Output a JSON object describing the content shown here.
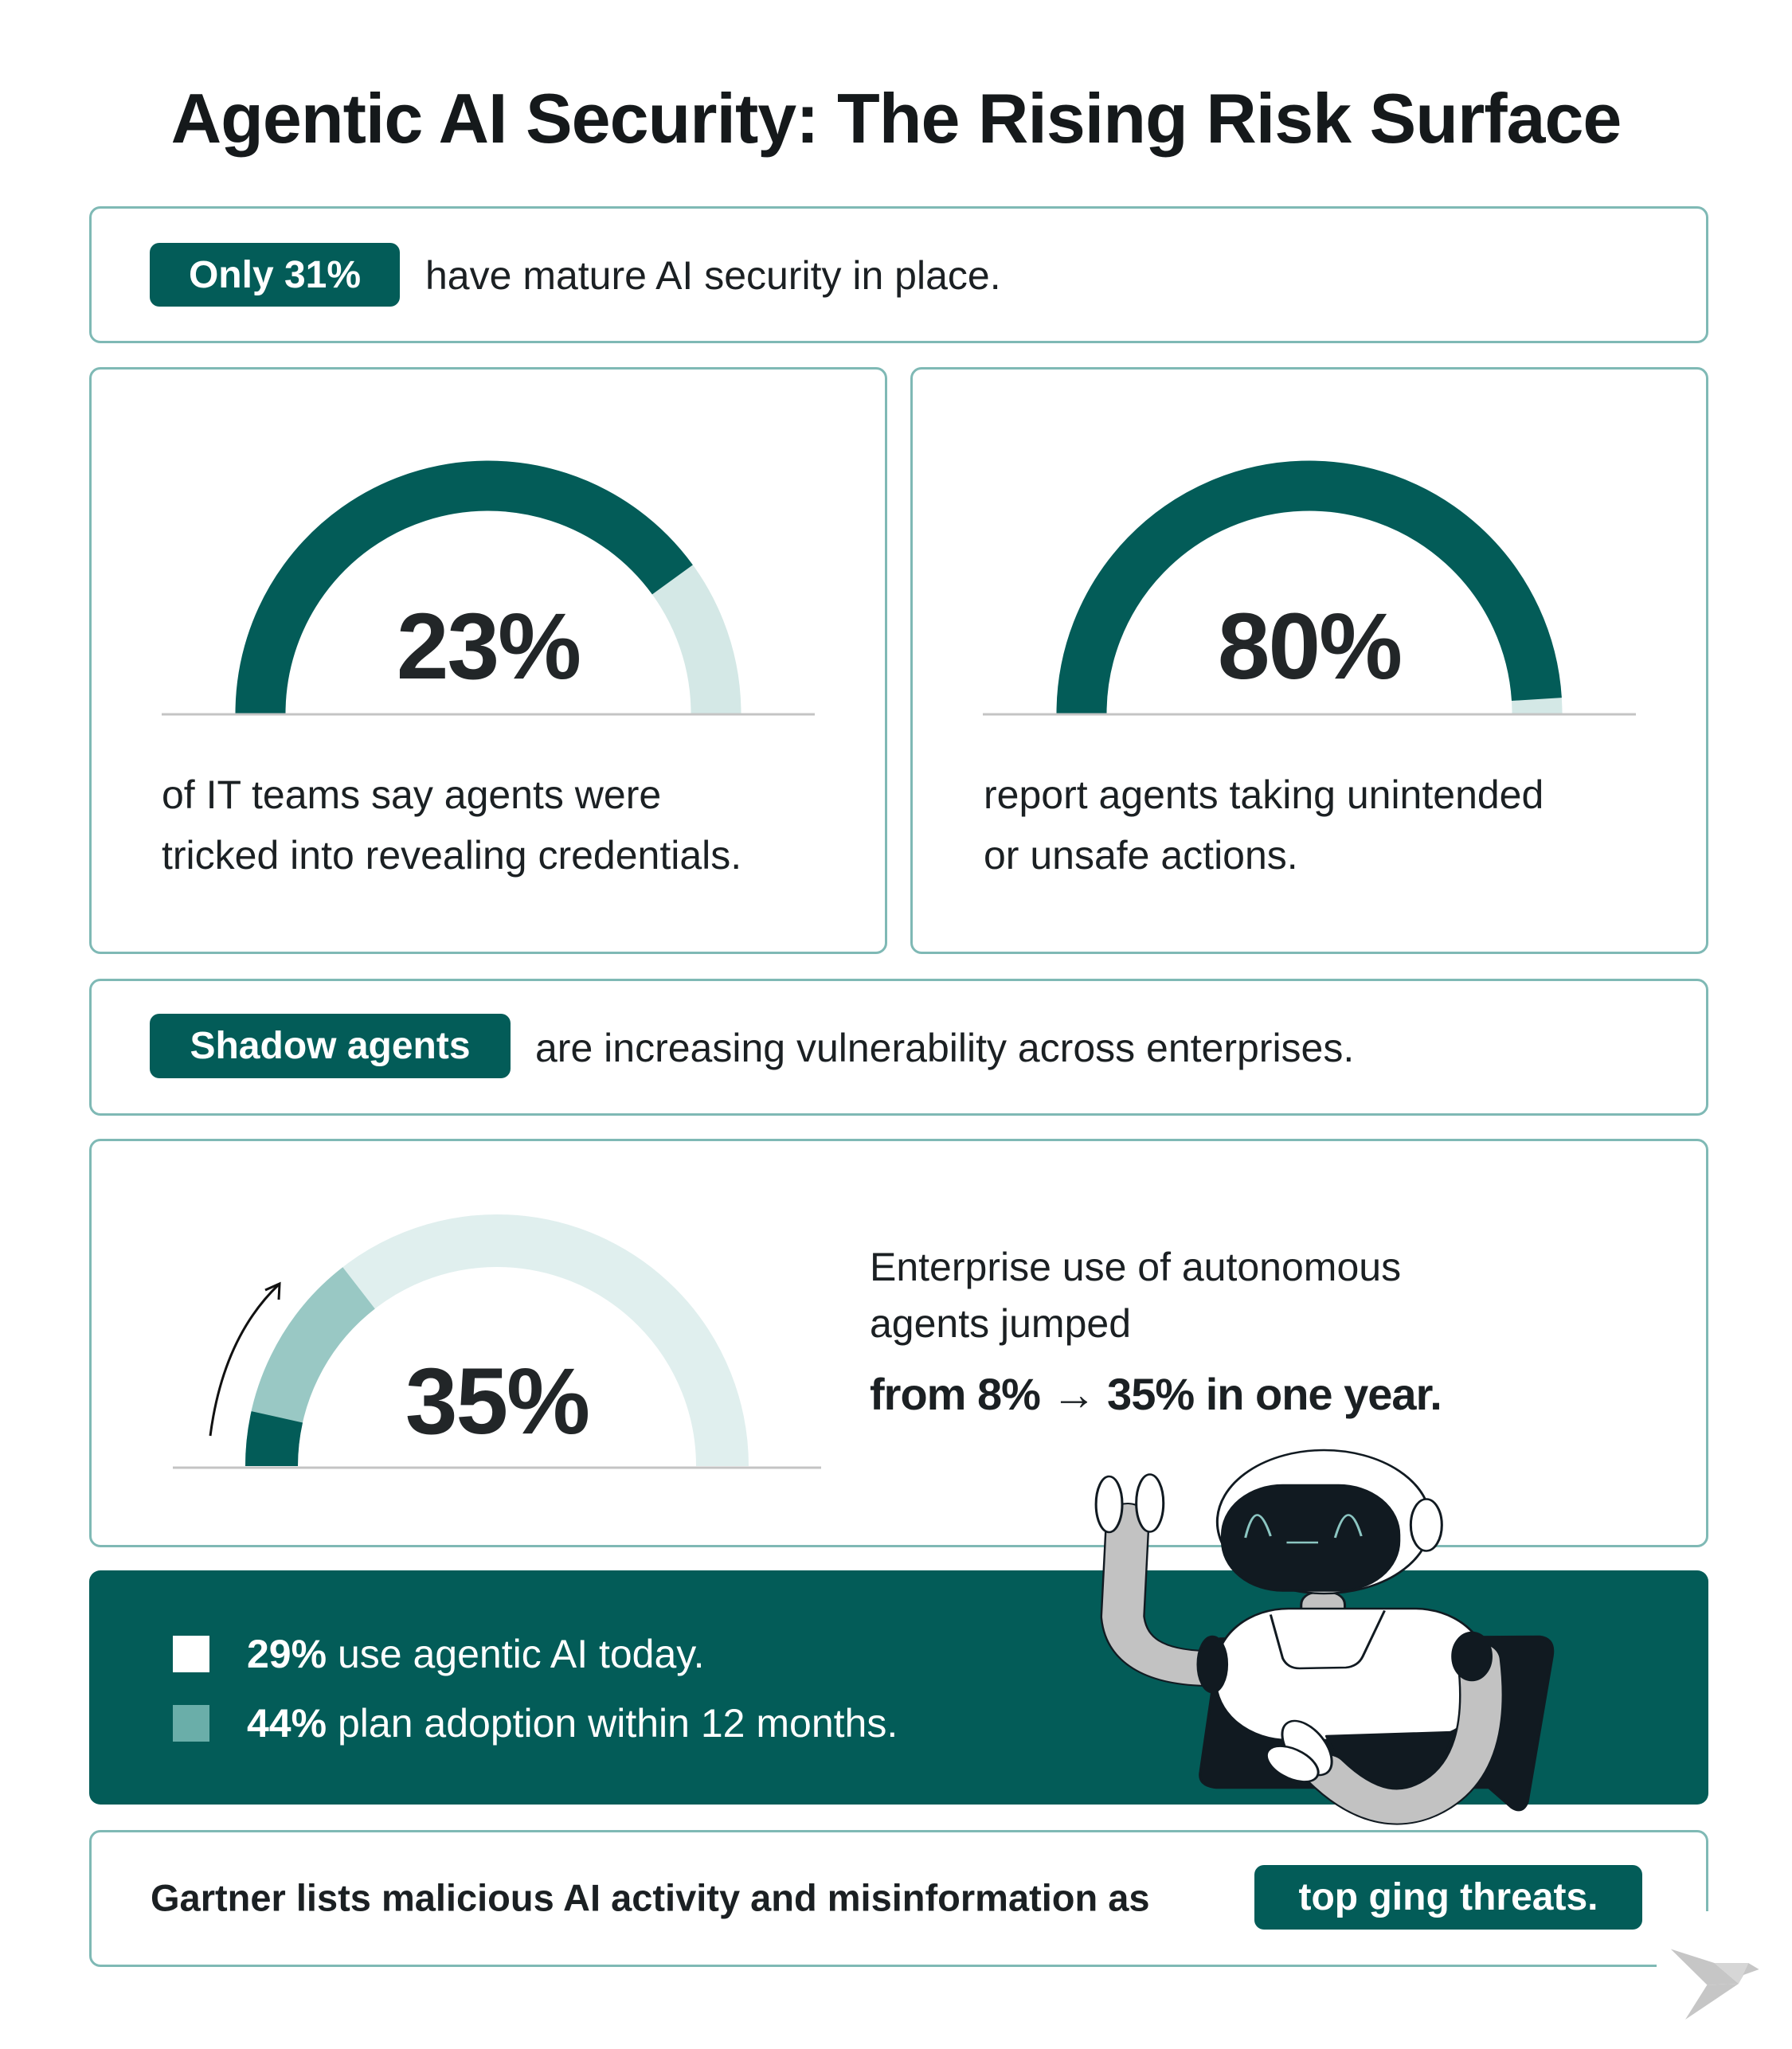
{
  "title": "Agentic AI Security: The Rising Risk Surface",
  "row1": {
    "pill": "Only 31%",
    "text": "have mature AI security in place."
  },
  "stat_left": {
    "value": "23%",
    "gauge_fill": 0.8,
    "line1": "of IT teams say agents were",
    "line2": "tricked into revealing credentials."
  },
  "stat_right": {
    "value": "80%",
    "gauge_fill": 0.98,
    "line1": "report agents taking unintended",
    "line2": "or unsafe actions."
  },
  "row3": {
    "pill": "Shadow agents",
    "text": "are increasing vulnerability across enterprises."
  },
  "growth": {
    "value": "35%",
    "from_fill": 0.07,
    "to_fill": 0.29,
    "line1": "Enterprise use of autonomous",
    "line2": "agents jumped",
    "line3": "from 8% → 35% in one year."
  },
  "legend": [
    {
      "bold": "29%",
      "text": " use agentic AI today.",
      "color": "#ffffff"
    },
    {
      "bold": "44%",
      "text": " plan adoption within 12 months.",
      "color": "#6aaea9"
    }
  ],
  "footer": {
    "text": "Gartner lists malicious AI activity and misinformation as",
    "pill": "top ging threats."
  },
  "colors": {
    "accent": "#035c58",
    "mid": "#99c8c4",
    "light": "#e0efee",
    "light2": "#d4e8e6",
    "border": "#7fb9b5"
  },
  "icons": {
    "robot": "robot-illustration",
    "logo": "origami-bird-logo",
    "arrow": "curved-up-arrow"
  }
}
